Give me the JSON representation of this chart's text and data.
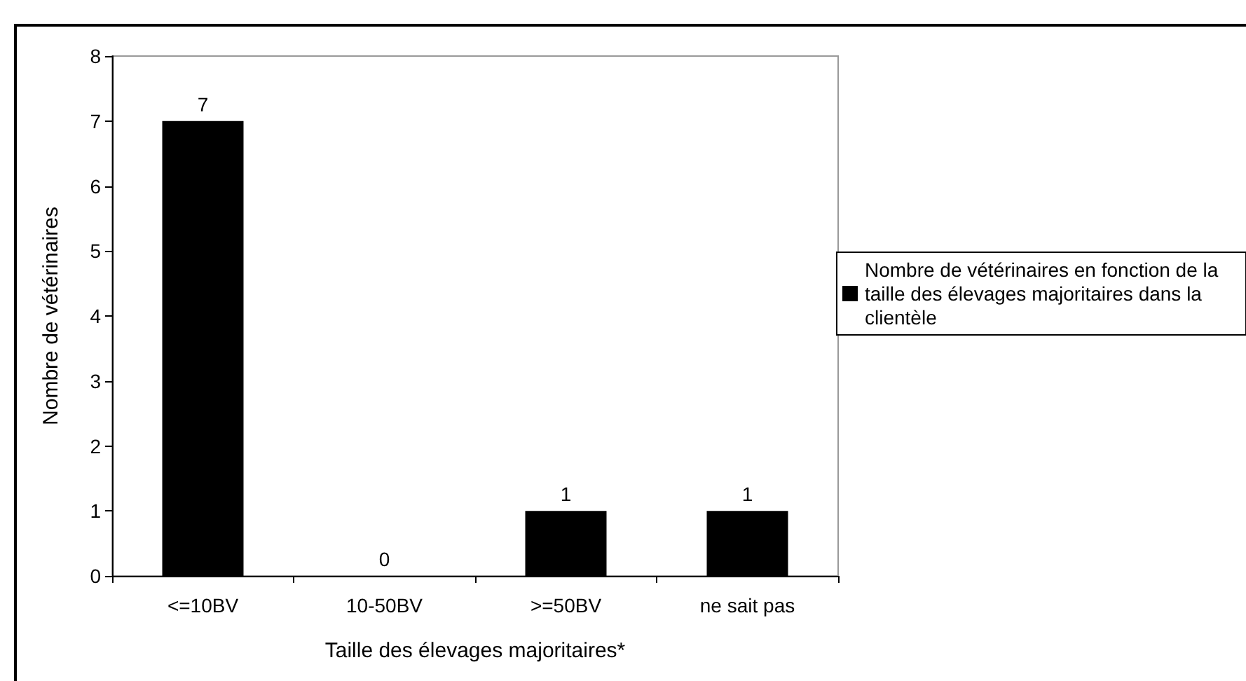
{
  "chart_data": {
    "type": "bar",
    "xlabel": "Taille des élevages majoritaires*",
    "ylabel": "Nombre de vétérinaires",
    "categories": [
      "<=10BV",
      "10-50BV",
      ">=50BV",
      "ne sait pas"
    ],
    "series": [
      {
        "name": "Nombre de vétérinaires en fonction de la taille des élevages majoritaires dans la clientèle",
        "color": "#000000",
        "values": [
          7,
          0,
          1,
          1
        ]
      }
    ],
    "ylim": [
      0,
      8
    ],
    "yticks": [
      0,
      1,
      2,
      3,
      4,
      5,
      6,
      7,
      8
    ],
    "grid": false,
    "legend": "right",
    "data_labels": true
  }
}
